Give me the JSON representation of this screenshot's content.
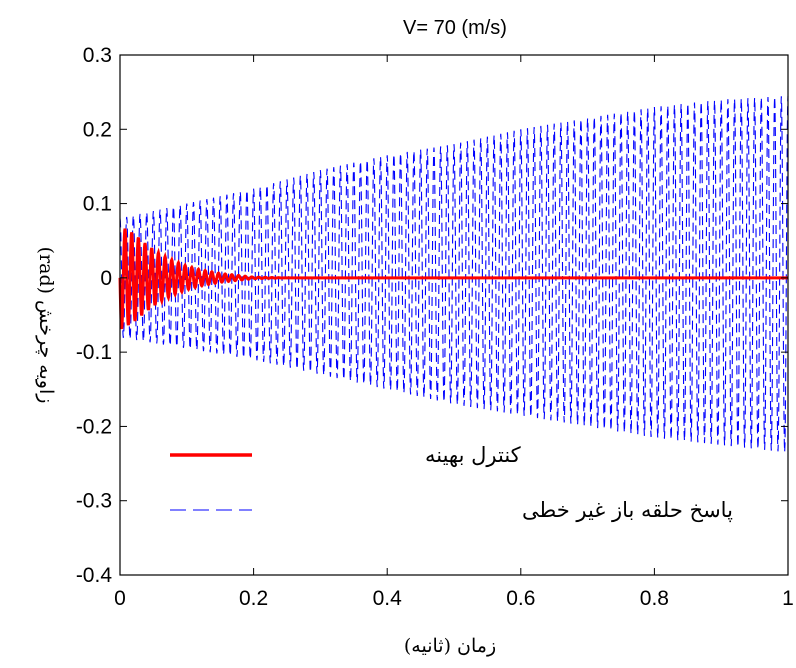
{
  "chart_data": {
    "type": "line",
    "title": "V= 70 (m/s)",
    "xlabel": "زمان (ثانیه)",
    "ylabel": "زاویه چرخش (rad)",
    "xlim": [
      0,
      1
    ],
    "ylim": [
      -0.4,
      0.3
    ],
    "xticks": [
      0,
      0.2,
      0.4,
      0.6,
      0.8,
      1
    ],
    "xtick_labels": [
      "0",
      "0.2",
      "0.4",
      "0.6",
      "0.8",
      "1"
    ],
    "yticks": [
      -0.4,
      -0.3,
      -0.2,
      -0.1,
      0,
      0.1,
      0.2,
      0.3
    ],
    "ytick_labels": [
      "-0.4",
      "-0.3",
      "-0.2",
      "-0.1",
      "0",
      "0.1",
      "0.2",
      "0.3"
    ],
    "grid": false,
    "legend_position": "bottom-left",
    "series": [
      {
        "name": "کنترل بهینه",
        "style": "solid",
        "color": "#ff0000",
        "oscillation_frequency_hz": 100,
        "x": [
          0,
          0.02,
          0.04,
          0.06,
          0.08,
          0.1,
          0.12,
          0.15,
          0.18,
          0.2,
          0.25,
          1
        ],
        "envelope": [
          0.07,
          0.06,
          0.045,
          0.032,
          0.023,
          0.016,
          0.011,
          0.006,
          0.003,
          0.001,
          0,
          0
        ]
      },
      {
        "name": "پاسخ حلقه باز غیر خطی",
        "style": "dashed",
        "color": "#0000ff",
        "oscillation_frequency_hz": 100,
        "x": [
          0,
          0.1,
          0.2,
          0.3,
          0.4,
          0.5,
          0.6,
          0.7,
          0.8,
          0.9,
          1
        ],
        "envelope_upper": [
          0.08,
          0.1,
          0.12,
          0.145,
          0.165,
          0.18,
          0.2,
          0.215,
          0.23,
          0.24,
          0.245
        ],
        "envelope_lower": [
          -0.08,
          -0.095,
          -0.11,
          -0.13,
          -0.15,
          -0.17,
          -0.185,
          -0.2,
          -0.215,
          -0.225,
          -0.235
        ]
      }
    ]
  }
}
